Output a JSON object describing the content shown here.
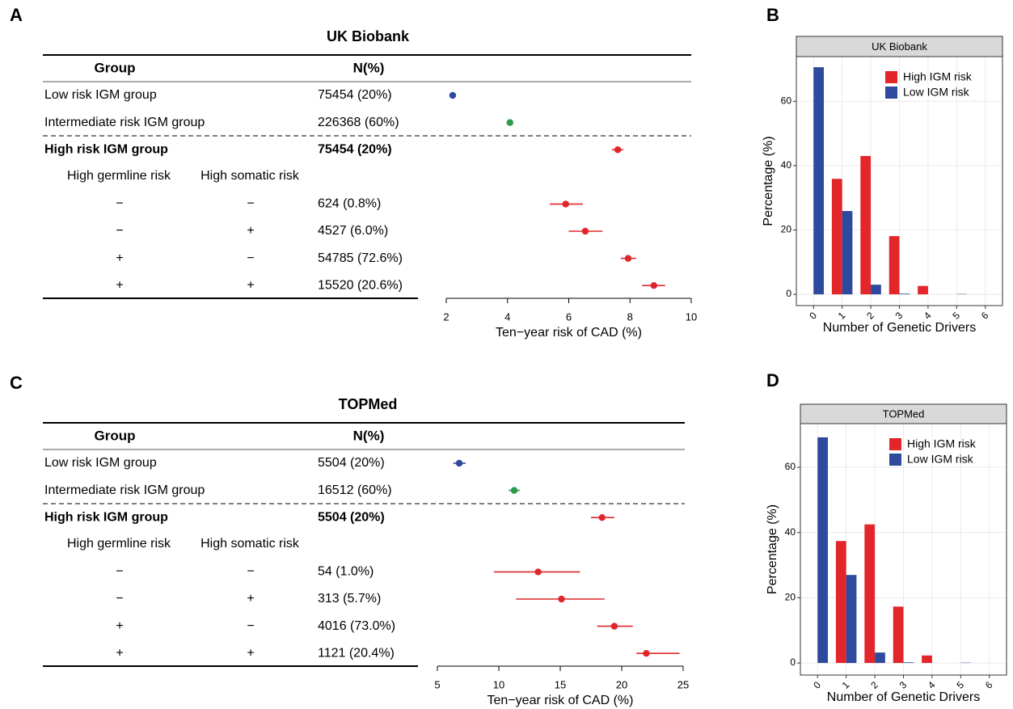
{
  "chart_data": [
    {
      "type": "forest",
      "panel": "A",
      "title": "UK Biobank",
      "columns": [
        "Group",
        "N(%)"
      ],
      "subgroup_columns": [
        "High germline risk",
        "High somatic risk"
      ],
      "rows": [
        {
          "group": "Low risk IGM group",
          "n": "75454 (20%)",
          "value": 2.21,
          "ci": [
            2.16,
            2.26
          ],
          "color": "#2e4a9e"
        },
        {
          "group": "Intermediate risk IGM group",
          "n": "226368 (60%)",
          "value": 4.08,
          "ci": [
            4.04,
            4.12
          ],
          "color": "#2e9a4c"
        },
        {
          "group": "High risk IGM group",
          "n": "75454 (20%)",
          "value": 7.6,
          "ci": [
            7.41,
            7.78
          ],
          "color": "#e0262b",
          "bold": true
        },
        {
          "germline": "−",
          "somatic": "−",
          "n": "624 (0.8%)",
          "value": 5.9,
          "ci": [
            5.38,
            6.46
          ],
          "color": "#e0262b"
        },
        {
          "germline": "−",
          "somatic": "+",
          "n": "4527 (6.0%)",
          "value": 6.54,
          "ci": [
            6.0,
            7.1
          ],
          "color": "#e0262b"
        },
        {
          "germline": "+",
          "somatic": "−",
          "n": "54785 (72.6%)",
          "value": 7.94,
          "ci": [
            7.7,
            8.2
          ],
          "color": "#e0262b"
        },
        {
          "germline": "+",
          "somatic": "+",
          "n": "15520 (20.6%)",
          "value": 8.78,
          "ci": [
            8.4,
            9.15
          ],
          "color": "#e0262b"
        }
      ],
      "xlabel": "Ten−year risk of CAD (%)",
      "xlim": [
        2,
        10
      ],
      "xticks": [
        2,
        4,
        6,
        8,
        10
      ]
    },
    {
      "type": "bar",
      "panel": "B",
      "title": "UK Biobank",
      "categories": [
        "0",
        "1",
        "2",
        "3",
        "4",
        "5",
        "6"
      ],
      "series": [
        {
          "name": "High IGM risk",
          "color": "#e3262a",
          "values": [
            0,
            35.9,
            43,
            18.1,
            2.6,
            0,
            0
          ]
        },
        {
          "name": "Low IGM risk",
          "color": "#2e4a9e",
          "values": [
            70.6,
            25.9,
            3,
            0.2,
            0,
            0.1,
            0
          ]
        }
      ],
      "xlabel": "Number of Genetic Drivers",
      "ylabel": "Percentage (%)",
      "ylim": [
        -3.5,
        73.9
      ],
      "yticks": [
        0,
        20,
        40,
        60
      ],
      "grid": true,
      "legend": "top-right"
    },
    {
      "type": "forest",
      "panel": "C",
      "title": "TOPMed",
      "columns": [
        "Group",
        "N(%)"
      ],
      "subgroup_columns": [
        "High germline risk",
        "High somatic risk"
      ],
      "rows": [
        {
          "group": "Low risk IGM group",
          "n": "5504 (20%)",
          "value": 6.78,
          "ci": [
            6.3,
            7.3
          ],
          "color": "#2e4a9e"
        },
        {
          "group": "Intermediate risk IGM group",
          "n": "16512 (60%)",
          "value": 11.25,
          "ci": [
            10.8,
            11.7
          ],
          "color": "#2e9a4c"
        },
        {
          "group": "High risk IGM group",
          "n": "5504 (20%)",
          "value": 18.4,
          "ci": [
            17.5,
            19.4
          ],
          "color": "#e0262b",
          "bold": true
        },
        {
          "germline": "−",
          "somatic": "−",
          "n": "54 (1.0%)",
          "value": 13.2,
          "ci": [
            9.6,
            16.6
          ],
          "color": "#e0262b"
        },
        {
          "germline": "−",
          "somatic": "+",
          "n": "313 (5.7%)",
          "value": 15.1,
          "ci": [
            11.4,
            18.6
          ],
          "color": "#e0262b"
        },
        {
          "germline": "+",
          "somatic": "−",
          "n": "4016 (73.0%)",
          "value": 19.4,
          "ci": [
            18.0,
            20.9
          ],
          "color": "#e0262b"
        },
        {
          "germline": "+",
          "somatic": "+",
          "n": "1121 (20.4%)",
          "value": 22.0,
          "ci": [
            21.2,
            24.7
          ],
          "color": "#e0262b"
        }
      ],
      "xlabel": "Ten−year risk of CAD (%)",
      "xlim": [
        5,
        25
      ],
      "xticks": [
        5,
        10,
        15,
        20,
        25
      ]
    },
    {
      "type": "bar",
      "panel": "D",
      "title": "TOPMed",
      "categories": [
        "0",
        "1",
        "2",
        "3",
        "4",
        "5",
        "6"
      ],
      "series": [
        {
          "name": "High IGM risk",
          "color": "#e3262a",
          "values": [
            0,
            37.4,
            42.5,
            17.3,
            2.3,
            0,
            0
          ]
        },
        {
          "name": "Low IGM risk",
          "color": "#2e4a9e",
          "values": [
            69.2,
            27,
            3.2,
            0.2,
            0,
            0.1,
            0
          ]
        }
      ],
      "xlabel": "Number of Genetic Drivers",
      "ylabel": "Percentage (%)",
      "ylim": [
        -3.7,
        73.4
      ],
      "yticks": [
        0,
        20,
        40,
        60
      ],
      "grid": true,
      "legend": "top-right"
    }
  ]
}
